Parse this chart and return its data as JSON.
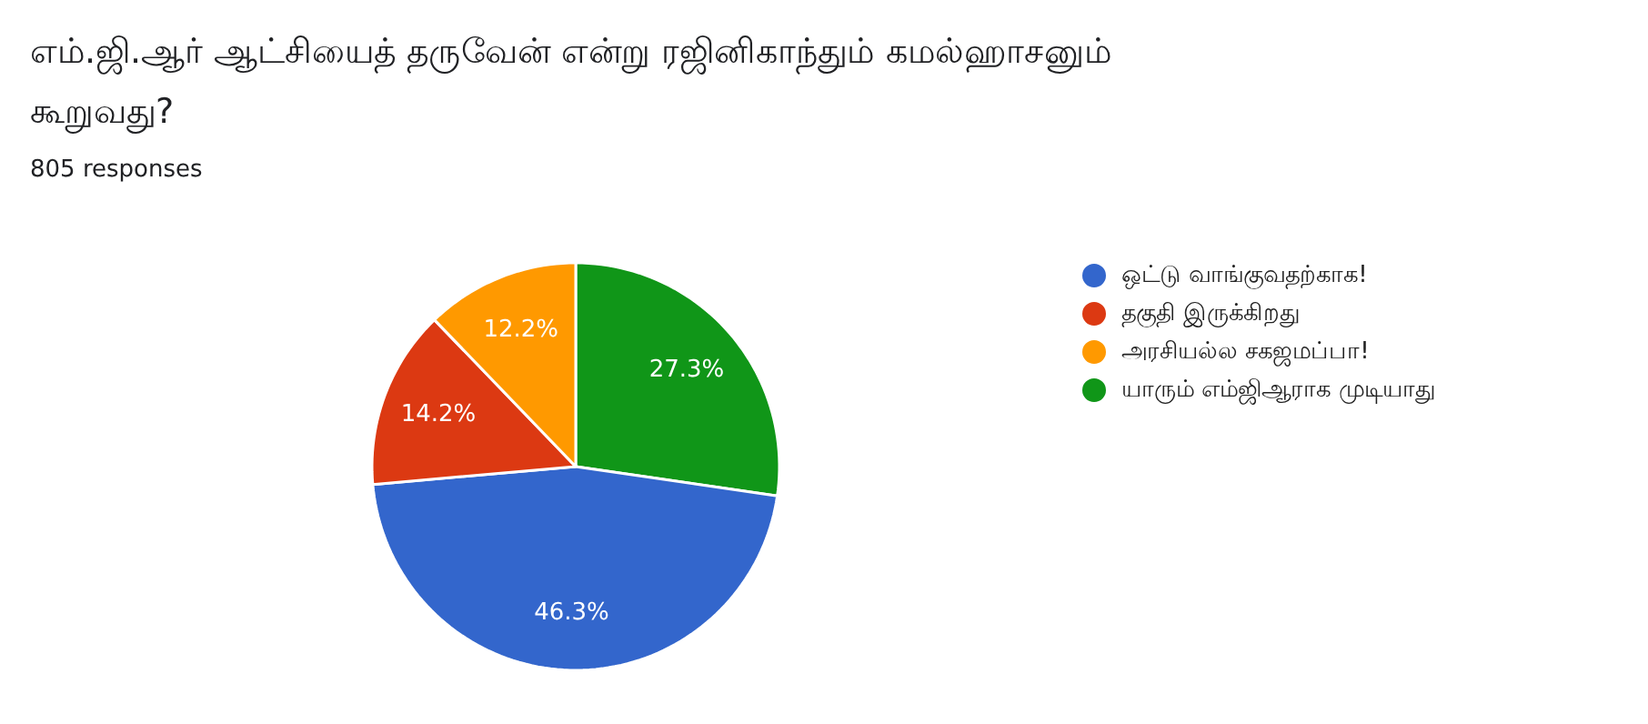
{
  "chart_data": {
    "type": "pie",
    "title": "எம்.ஜி.ஆர் ஆட்சியைத் தருவேன் என்று ரஜினிகாந்தும் கமல்ஹாசனும் கூறுவது?",
    "subtitle": "805 responses",
    "categories": [
      "ஒட்டு வாங்குவதற்காக!",
      "தகுதி இருக்கிறது",
      "அரசியல்ல சகஜமப்பா!",
      "யாரும் எம்ஜிஆராக முடியாது"
    ],
    "values": [
      46.3,
      14.2,
      12.2,
      27.3
    ],
    "colors": [
      "#3366cc",
      "#dc3912",
      "#ff9900",
      "#109618"
    ],
    "value_labels": [
      "46.3%",
      "14.2%",
      "12.2%",
      "27.3%"
    ],
    "legend": "right"
  }
}
